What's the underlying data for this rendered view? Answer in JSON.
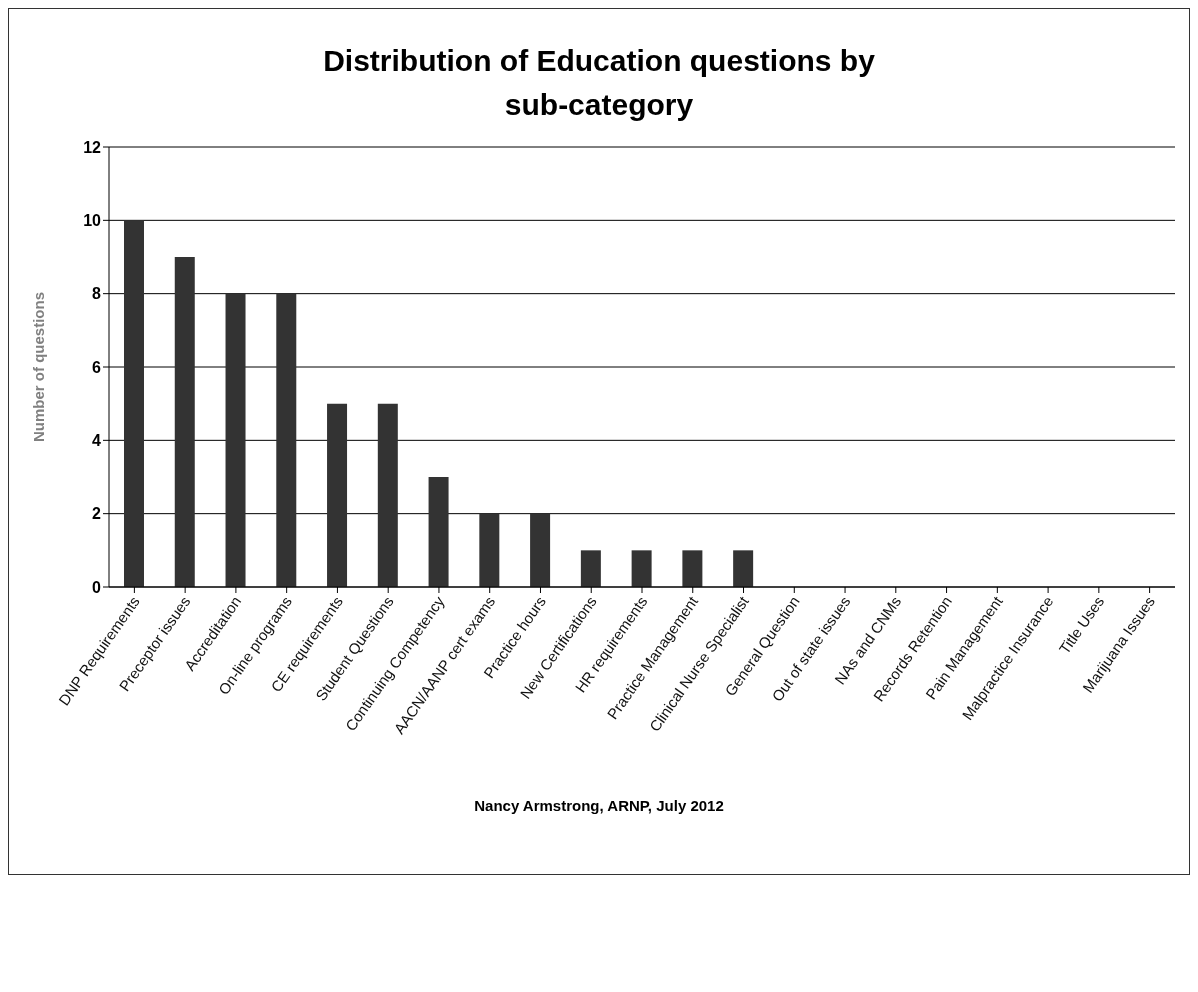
{
  "chart_data": {
    "type": "bar",
    "title": "Distribution of Education questions by sub-category",
    "ylabel": "Number of questions",
    "categories": [
      "DNP Requirements",
      "Preceptor issues",
      "Accreditation",
      "On-line programs",
      "CE requirements",
      "Student Questions",
      "Continuing Competency",
      "AACN/AANP cert exams",
      "Practice hours",
      "New Certifications",
      "HR requirements",
      "Practice Management",
      "Clinical Nurse Specialist",
      "General Question",
      "Out of state issues",
      "NAs and CNMs",
      "Records Retention",
      "Pain Management",
      "Malpractice Insurance",
      "Title Uses",
      "Marijuana Issues"
    ],
    "values": [
      10,
      9,
      8,
      8,
      5,
      5,
      3,
      2,
      2,
      1,
      1,
      1,
      1,
      0,
      0,
      0,
      0,
      0,
      0,
      0,
      0
    ],
    "color": "#333333",
    "ylim": [
      0,
      12
    ],
    "yticks": [
      0,
      2,
      4,
      6,
      8,
      10,
      12
    ],
    "grid": "y",
    "legend": false,
    "annotations": [
      "Nancy Armstrong, ARNP, July 2012"
    ]
  }
}
